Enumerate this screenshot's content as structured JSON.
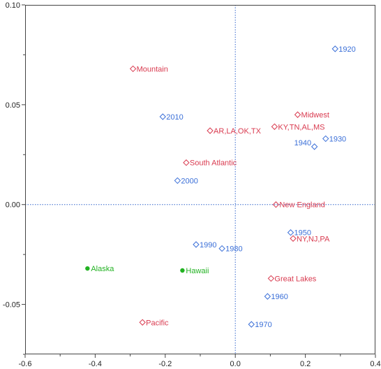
{
  "chart_data": {
    "type": "scatter",
    "title": "",
    "xlabel": "",
    "ylabel": "",
    "xlim": [
      -0.6,
      0.4
    ],
    "ylim": [
      -0.075,
      0.1
    ],
    "x_ticks": [
      -0.6,
      -0.4,
      -0.2,
      0.0,
      0.2,
      0.4
    ],
    "x_tick_labels": [
      "-0.6",
      "-0.4",
      "-0.2",
      "0.0",
      "0.2",
      "0.4"
    ],
    "y_ticks": [
      -0.05,
      0.0,
      0.05,
      0.1
    ],
    "y_tick_labels": [
      "-0.05",
      "0.00",
      "0.05",
      "0.10"
    ],
    "reference_lines": {
      "x": 0,
      "y": 0,
      "style": "dotted",
      "color": "#3366cc"
    },
    "grid": false,
    "legend": "none",
    "series": [
      {
        "marker": "open-diamond",
        "color": "#3a6fd8",
        "points": [
          {
            "label": "1920",
            "x": 0.285,
            "y": 0.078
          },
          {
            "label": "1930",
            "x": 0.258,
            "y": 0.033
          },
          {
            "label": "1940",
            "x": 0.226,
            "y": 0.029
          },
          {
            "label": "2010",
            "x": -0.207,
            "y": 0.044
          },
          {
            "label": "2000",
            "x": -0.165,
            "y": 0.012
          },
          {
            "label": "1950",
            "x": 0.158,
            "y": -0.014
          },
          {
            "label": "1990",
            "x": -0.112,
            "y": -0.02
          },
          {
            "label": "1980",
            "x": -0.038,
            "y": -0.022
          },
          {
            "label": "1960",
            "x": 0.092,
            "y": -0.046
          },
          {
            "label": "1970",
            "x": 0.046,
            "y": -0.06
          }
        ]
      },
      {
        "marker": "open-diamond",
        "color": "#d93a4f",
        "points": [
          {
            "label": "Mountain",
            "x": -0.292,
            "y": 0.068
          },
          {
            "label": "Midwest",
            "x": 0.178,
            "y": 0.045
          },
          {
            "label": "KY,TN,AL,MS",
            "x": 0.112,
            "y": 0.039
          },
          {
            "label": "AR,LA,OK,TX",
            "x": -0.072,
            "y": 0.037
          },
          {
            "label": "South Atlantic",
            "x": -0.14,
            "y": 0.021
          },
          {
            "label": "New England",
            "x": 0.116,
            "y": 0.0
          },
          {
            "label": "NY,NJ,PA",
            "x": 0.165,
            "y": -0.017
          },
          {
            "label": "Great Lakes",
            "x": 0.102,
            "y": -0.037
          },
          {
            "label": "Pacific",
            "x": -0.265,
            "y": -0.059
          }
        ]
      },
      {
        "marker": "filled-circle",
        "color": "#22b222",
        "points": [
          {
            "label": "Alaska",
            "x": -0.422,
            "y": -0.032
          },
          {
            "label": "Hawaii",
            "x": -0.151,
            "y": -0.033
          }
        ]
      }
    ]
  }
}
